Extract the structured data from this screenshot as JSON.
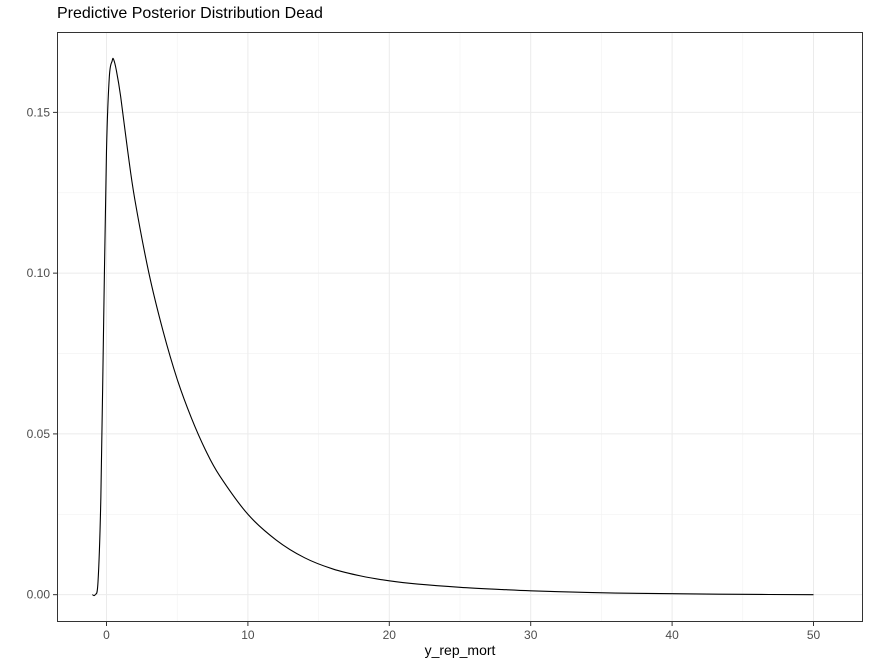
{
  "chart_data": {
    "type": "line",
    "title": "Predictive Posterior Distribution Dead",
    "xlabel": "y_rep_mort",
    "ylabel": "",
    "xlim": [
      -3.5,
      53.5
    ],
    "ylim": [
      -0.0085,
      0.175
    ],
    "x_ticks": [
      0,
      10,
      20,
      30,
      40,
      50
    ],
    "x_tick_labels": [
      "0",
      "10",
      "20",
      "30",
      "40",
      "50"
    ],
    "y_ticks": [
      0.0,
      0.05,
      0.1,
      0.15
    ],
    "y_tick_labels": [
      "0.00",
      "0.05",
      "0.10",
      "0.15"
    ],
    "x_minor_ticks": [
      5,
      15,
      25,
      35,
      45
    ],
    "y_minor_ticks": [
      0.025,
      0.075,
      0.125
    ],
    "grid": true,
    "theme": "bw",
    "line_color": "#000000",
    "series": [
      {
        "x": [
          -1,
          -0.8,
          -0.6,
          -0.4,
          -0.2,
          0,
          0.2,
          0.4,
          0.5,
          0.7,
          1,
          1.5,
          2,
          3,
          4,
          5,
          6,
          7,
          8,
          10,
          12,
          14,
          16,
          18,
          20,
          22,
          25,
          28,
          30,
          33,
          36,
          40,
          45,
          50
        ],
        "y": [
          0.0,
          0.0,
          0.004,
          0.03,
          0.085,
          0.138,
          0.161,
          0.166,
          0.1665,
          0.163,
          0.155,
          0.138,
          0.123,
          0.1,
          0.082,
          0.067,
          0.055,
          0.045,
          0.037,
          0.025,
          0.017,
          0.0115,
          0.008,
          0.0058,
          0.0043,
          0.0033,
          0.0023,
          0.0016,
          0.0012,
          0.0008,
          0.0005,
          0.0003,
          0.0001,
          0.0
        ]
      }
    ]
  }
}
